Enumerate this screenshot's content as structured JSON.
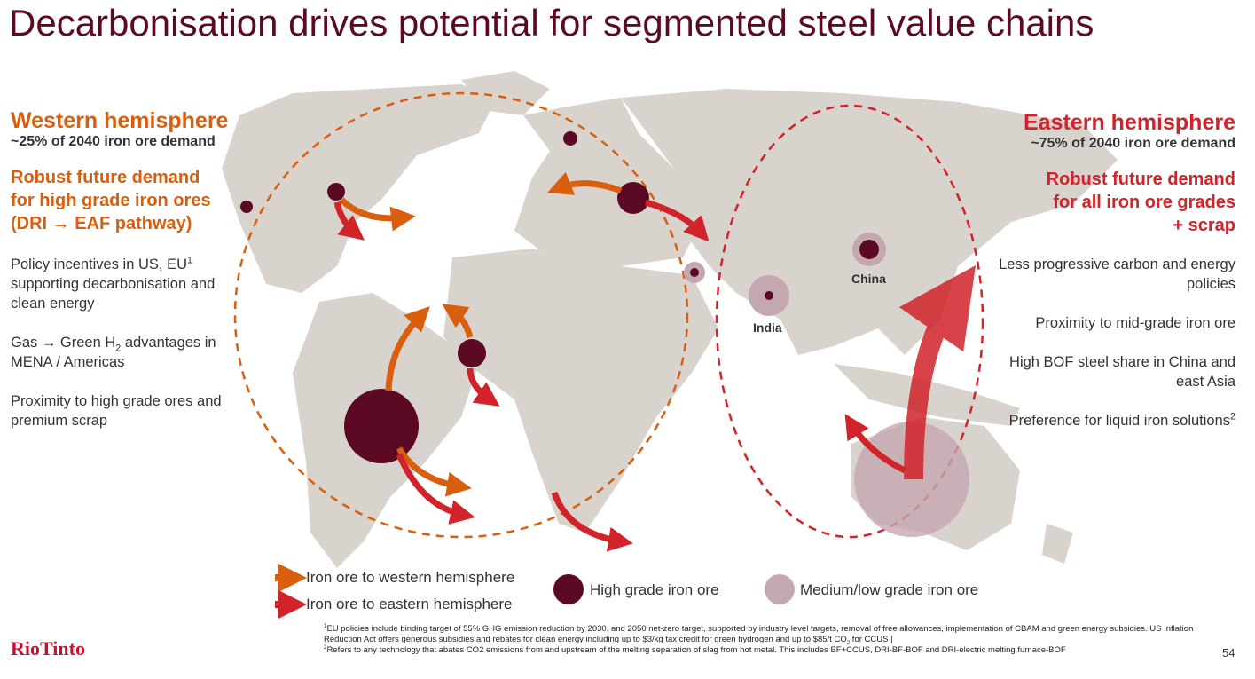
{
  "title": "Decarbonisation drives potential for segmented steel value chains",
  "western": {
    "heading": "Western hemisphere",
    "share": "~25% of 2040 iron ore demand",
    "demand": [
      "Robust future demand",
      "for high grade iron ores",
      "(DRI → EAF pathway)"
    ],
    "points": [
      {
        "text": "Policy incentives in US, EU",
        "sup": "1",
        "after": " supporting decarbonisation and clean energy"
      },
      {
        "text": "Gas → Green H",
        "sub": "2",
        "after": " advantages in MENA / Americas"
      },
      {
        "text": "Proximity to high grade ores and premium scrap"
      }
    ]
  },
  "eastern": {
    "heading": "Eastern hemisphere",
    "share": "~75% of 2040 iron ore demand",
    "demand": [
      "Robust future demand",
      "for all iron ore grades",
      "+ scrap"
    ],
    "points": [
      {
        "text": "Less progressive carbon and energy policies"
      },
      {
        "text": "Proximity to mid-grade iron ore"
      },
      {
        "text": "High BOF steel share in China and east Asia"
      },
      {
        "text": "Preference for liquid iron solutions",
        "sup": "2"
      }
    ]
  },
  "map_labels": {
    "china": "China",
    "india": "India"
  },
  "legend": [
    "Iron ore to western hemisphere",
    "Iron ore to eastern hemisphere",
    "High grade iron ore",
    "Medium/low grade iron ore"
  ],
  "footnotes": [
    {
      "mark": "1",
      "text": "EU policies include binding target of 55% GHG emission reduction by 2030, and 2050 net-zero target, supported by industry level targets, removal of free allowances, implementation of CBAM and green energy subsidies. US Inflation Reduction Act offers generous subsidies and rebates for clean energy including up to $3/kg tax credit for green hydrogen and up to $85/t CO",
      "sub": "2",
      "after": " for CCUS |"
    },
    {
      "mark": "2",
      "text": "Refers to any technology that abates CO2 emissions from and upstream of the melting separation of slag from hot metal. This includes BF+CCUS, DRI-BF-BOF and DRI-electric melting furnace-BOF"
    }
  ],
  "logo": "RioTinto",
  "page_number": "54"
}
